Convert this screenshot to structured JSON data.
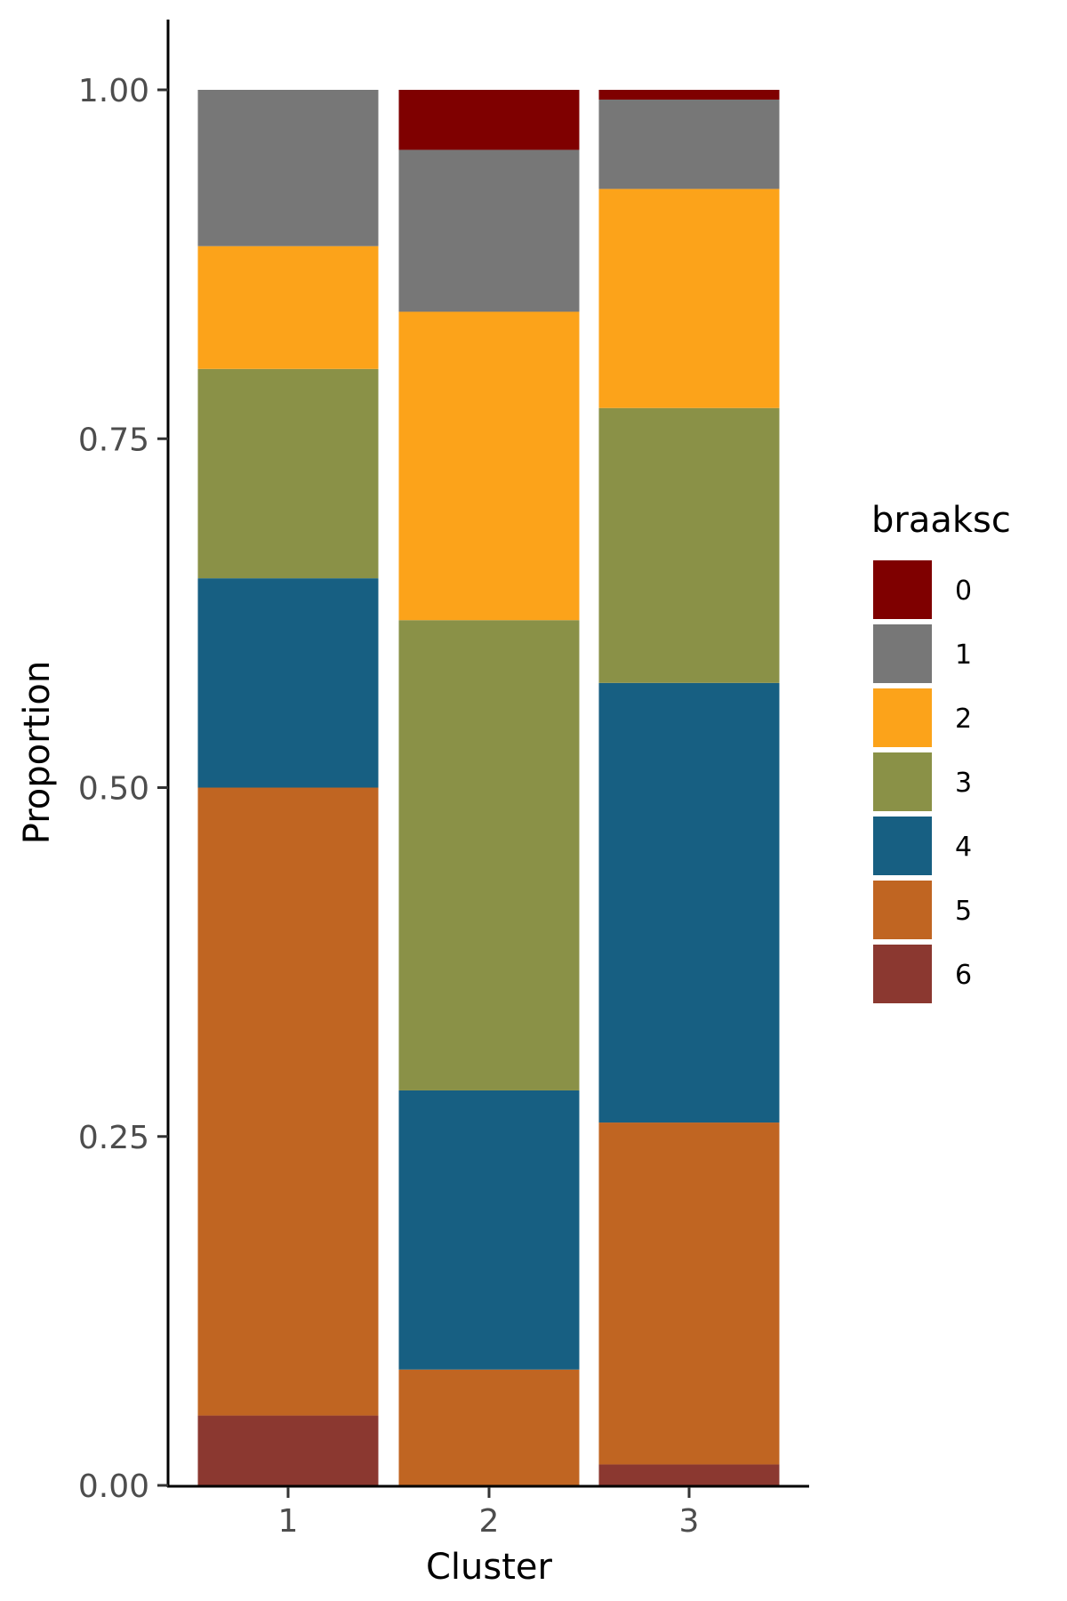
{
  "chart_data": {
    "type": "bar",
    "stacked": true,
    "xlabel": "Cluster",
    "ylabel": "Proportion",
    "categories": [
      "1",
      "2",
      "3"
    ],
    "ylim": [
      0,
      1
    ],
    "yticks": [
      "0.00",
      "0.25",
      "0.50",
      "0.75",
      "1.00"
    ],
    "ytick_values": [
      0,
      0.25,
      0.5,
      0.75,
      1.0
    ],
    "legend": {
      "title": "braaksc",
      "position": "right"
    },
    "series": [
      {
        "name": "6",
        "color": "#8B3830",
        "values": [
          0.05,
          0.0,
          0.015
        ]
      },
      {
        "name": "5",
        "color": "#C06522",
        "values": [
          0.45,
          0.083,
          0.245
        ]
      },
      {
        "name": "4",
        "color": "#175F82",
        "values": [
          0.15,
          0.2,
          0.315
        ]
      },
      {
        "name": "3",
        "color": "#8A9147",
        "values": [
          0.15,
          0.337,
          0.197
        ]
      },
      {
        "name": "2",
        "color": "#FCA31A",
        "values": [
          0.088,
          0.221,
          0.157
        ]
      },
      {
        "name": "1",
        "color": "#777777",
        "values": [
          0.112,
          0.116,
          0.064
        ]
      },
      {
        "name": "0",
        "color": "#7F0000",
        "values": [
          0.0,
          0.043,
          0.007
        ]
      }
    ],
    "legend_order": [
      "0",
      "1",
      "2",
      "3",
      "4",
      "5",
      "6"
    ],
    "grid": false
  }
}
